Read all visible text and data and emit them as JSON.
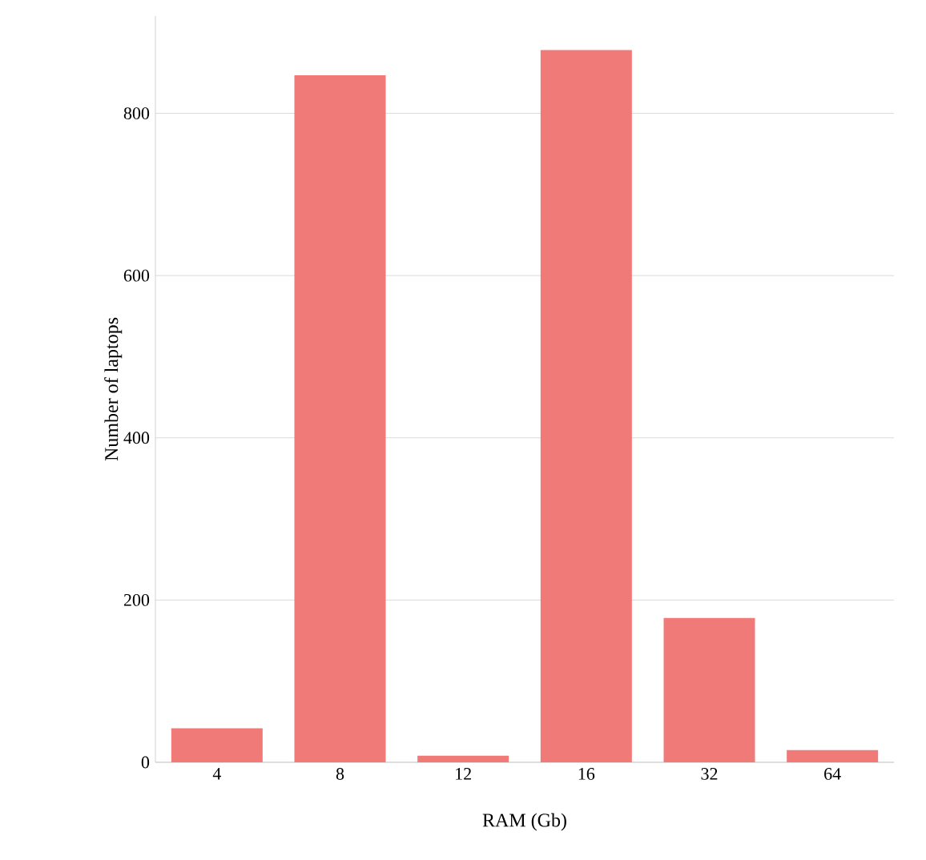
{
  "chart_data": {
    "type": "bar",
    "xlabel": "RAM (Gb)",
    "ylabel": "Number of laptops",
    "categories": [
      "4",
      "8",
      "12",
      "16",
      "32",
      "64"
    ],
    "values": [
      42,
      847,
      8,
      878,
      178,
      15
    ],
    "color": "#f07a78",
    "ylim": [
      0,
      920
    ],
    "yticks": [
      0,
      200,
      400,
      600,
      800
    ],
    "grid": "y"
  }
}
